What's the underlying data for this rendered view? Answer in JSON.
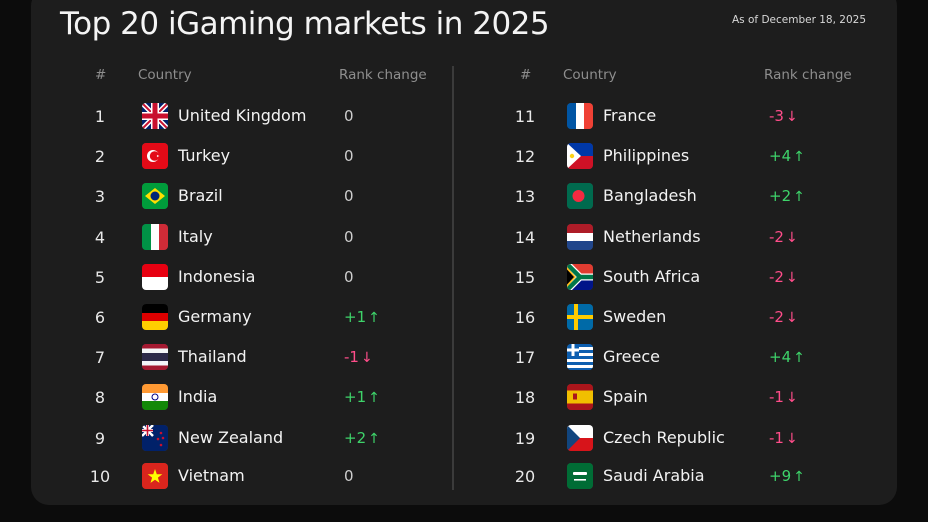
{
  "title": "Top 20 iGaming markets in 2025",
  "as_of": "As of December 18, 2025",
  "headers": {
    "rank": "#",
    "country": "Country",
    "change": "Rank change"
  },
  "chart_data": {
    "type": "table",
    "columns": [
      "#",
      "Country",
      "Rank change"
    ],
    "rows": [
      {
        "rank": "1",
        "country": "United Kingdom",
        "flag": "gb",
        "change": "0",
        "dir": "flat"
      },
      {
        "rank": "2",
        "country": "Turkey",
        "flag": "tr",
        "change": "0",
        "dir": "flat"
      },
      {
        "rank": "3",
        "country": "Brazil",
        "flag": "br",
        "change": "0",
        "dir": "flat"
      },
      {
        "rank": "4",
        "country": "Italy",
        "flag": "it",
        "change": "0",
        "dir": "flat"
      },
      {
        "rank": "5",
        "country": "Indonesia",
        "flag": "id",
        "change": "0",
        "dir": "flat"
      },
      {
        "rank": "6",
        "country": "Germany",
        "flag": "de",
        "change": "+1",
        "dir": "up"
      },
      {
        "rank": "7",
        "country": "Thailand",
        "flag": "th",
        "change": "-1",
        "dir": "down"
      },
      {
        "rank": "8",
        "country": "India",
        "flag": "in",
        "change": "+1",
        "dir": "up"
      },
      {
        "rank": "9",
        "country": "New Zealand",
        "flag": "nz",
        "change": "+2",
        "dir": "up"
      },
      {
        "rank": "10",
        "country": "Vietnam",
        "flag": "vn",
        "change": "0",
        "dir": "flat"
      },
      {
        "rank": "11",
        "country": "France",
        "flag": "fr",
        "change": "-3",
        "dir": "down"
      },
      {
        "rank": "12",
        "country": "Philippines",
        "flag": "ph",
        "change": "+4",
        "dir": "up"
      },
      {
        "rank": "13",
        "country": "Bangladesh",
        "flag": "bd",
        "change": "+2",
        "dir": "up"
      },
      {
        "rank": "14",
        "country": "Netherlands",
        "flag": "nl",
        "change": "-2",
        "dir": "down"
      },
      {
        "rank": "15",
        "country": "South Africa",
        "flag": "za",
        "change": "-2",
        "dir": "down"
      },
      {
        "rank": "16",
        "country": "Sweden",
        "flag": "se",
        "change": "-2",
        "dir": "down"
      },
      {
        "rank": "17",
        "country": "Greece",
        "flag": "gr",
        "change": "+4",
        "dir": "up"
      },
      {
        "rank": "18",
        "country": "Spain",
        "flag": "es",
        "change": "-1",
        "dir": "down"
      },
      {
        "rank": "19",
        "country": "Czech Republic",
        "flag": "cz",
        "change": "-1",
        "dir": "down"
      },
      {
        "rank": "20",
        "country": "Saudi Arabia",
        "flag": "sa",
        "change": "+9",
        "dir": "up"
      }
    ]
  },
  "colors": {
    "up": "#3ed36a",
    "down": "#ff4d8a",
    "flat": "#cfcfcf",
    "card": "#1d1d1d",
    "background": "#0c0c0c"
  }
}
